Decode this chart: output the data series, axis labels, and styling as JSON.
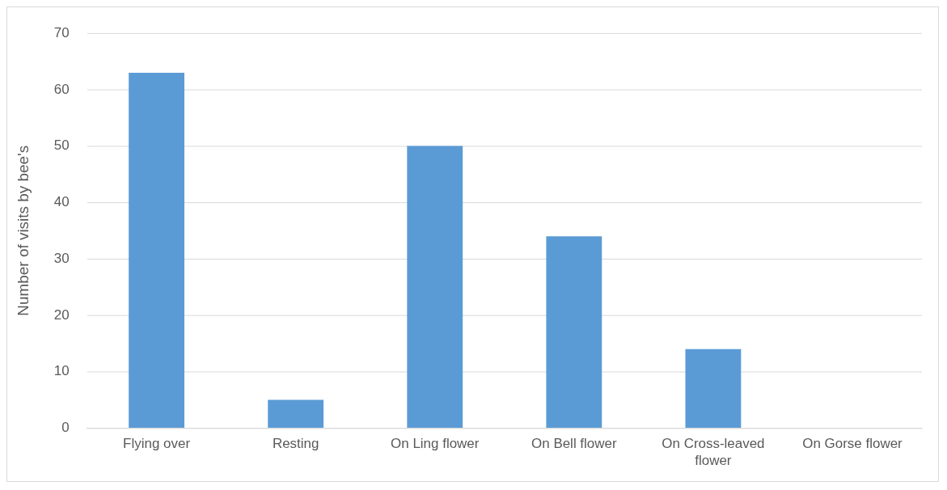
{
  "chart_data": {
    "type": "bar",
    "ylabel": "Number of visits by bee's",
    "categories": [
      "Flying over",
      "Resting",
      "On Ling flower",
      "On Bell flower",
      "On Cross-leaved flower",
      "On Gorse flower"
    ],
    "values": [
      63,
      5,
      50,
      34,
      14,
      0
    ],
    "color": "#5b9bd5",
    "ylim": [
      0,
      70
    ],
    "yticks": [
      0,
      10,
      20,
      30,
      40,
      50,
      60,
      70
    ],
    "grid": "y",
    "legend": false
  }
}
